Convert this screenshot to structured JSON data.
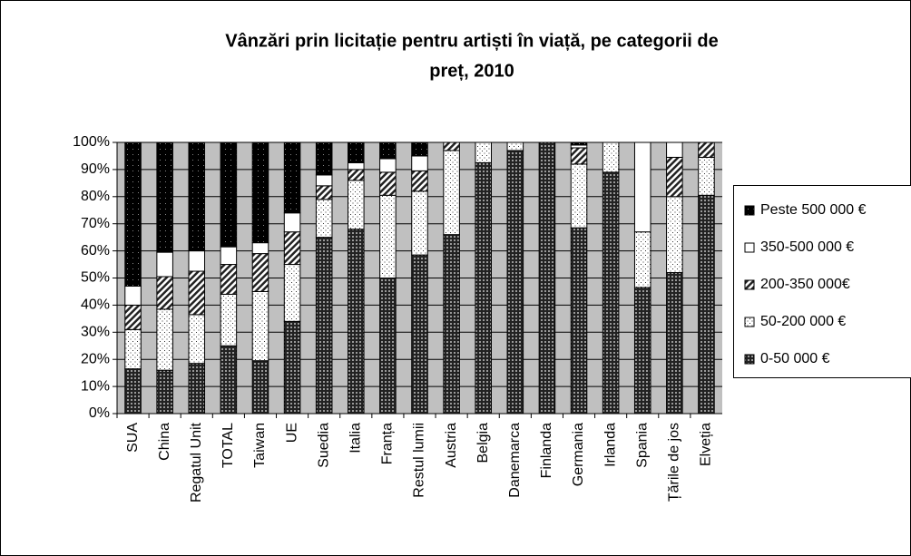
{
  "chart_data": {
    "type": "stacked_bar_100",
    "title": [
      "Vânzări prin licitație pentru artiști în viață, pe categorii de",
      "preț, 2010"
    ],
    "categories": [
      "SUA",
      "China",
      "Regatul Unit",
      "TOTAL",
      "Taiwan",
      "UE",
      "Suedia",
      "Italia",
      "Franța",
      "Restul lumii",
      "Austria",
      "Belgia",
      "Danemarca",
      "Finlanda",
      "Germania",
      "Irlanda",
      "Spania",
      "Țările de jos",
      "Elveția"
    ],
    "series": [
      {
        "name": "0-50 000 €",
        "color": "#333333",
        "pattern": "checker",
        "values": [
          16.5,
          16,
          18.5,
          25,
          19.5,
          34,
          65,
          68,
          50,
          58.5,
          66,
          92.5,
          97,
          100,
          68.5,
          89,
          46.5,
          52,
          80.5
        ]
      },
      {
        "name": "50-200 000 €",
        "color": "#ffffff",
        "pattern": "dots",
        "values": [
          14.5,
          22.5,
          18,
          19,
          25.5,
          21,
          14,
          18,
          30.5,
          23.5,
          31,
          7.5,
          3,
          0,
          23.5,
          11,
          20.5,
          28,
          14
        ]
      },
      {
        "name": "200-350 000€",
        "color": "#ffffff",
        "pattern": "hatch",
        "values": [
          9,
          12,
          16,
          11,
          14,
          12,
          5,
          4,
          8.5,
          7.5,
          3,
          0,
          0,
          0,
          6,
          0,
          0,
          14.5,
          5.5
        ]
      },
      {
        "name": "350-500 000 €",
        "color": "#ffffff",
        "pattern": "none",
        "values": [
          7,
          9,
          7.5,
          6.5,
          4,
          7,
          4,
          2.5,
          5,
          5.5,
          0,
          0,
          0,
          0,
          1,
          0,
          33,
          5.5,
          0
        ]
      },
      {
        "name": "Peste 500 000 €",
        "color": "#000000",
        "pattern": "stars",
        "values": [
          53,
          40.5,
          40,
          38.5,
          37,
          26,
          12,
          7.5,
          6,
          5,
          0,
          0,
          0,
          0,
          1,
          0,
          0,
          0,
          0
        ]
      }
    ],
    "ylim": [
      0,
      100
    ],
    "yticks": [
      {
        "value": 0,
        "label": "0%"
      },
      {
        "value": 10,
        "label": "10%"
      },
      {
        "value": 20,
        "label": "20%"
      },
      {
        "value": 30,
        "label": "30%"
      },
      {
        "value": 40,
        "label": "40%"
      },
      {
        "value": 50,
        "label": "50%"
      },
      {
        "value": 60,
        "label": "60%"
      },
      {
        "value": 70,
        "label": "70%"
      },
      {
        "value": 80,
        "label": "80%"
      },
      {
        "value": 90,
        "label": "90%"
      },
      {
        "value": 100,
        "label": "100%"
      }
    ],
    "grid": true,
    "legend": "right"
  }
}
